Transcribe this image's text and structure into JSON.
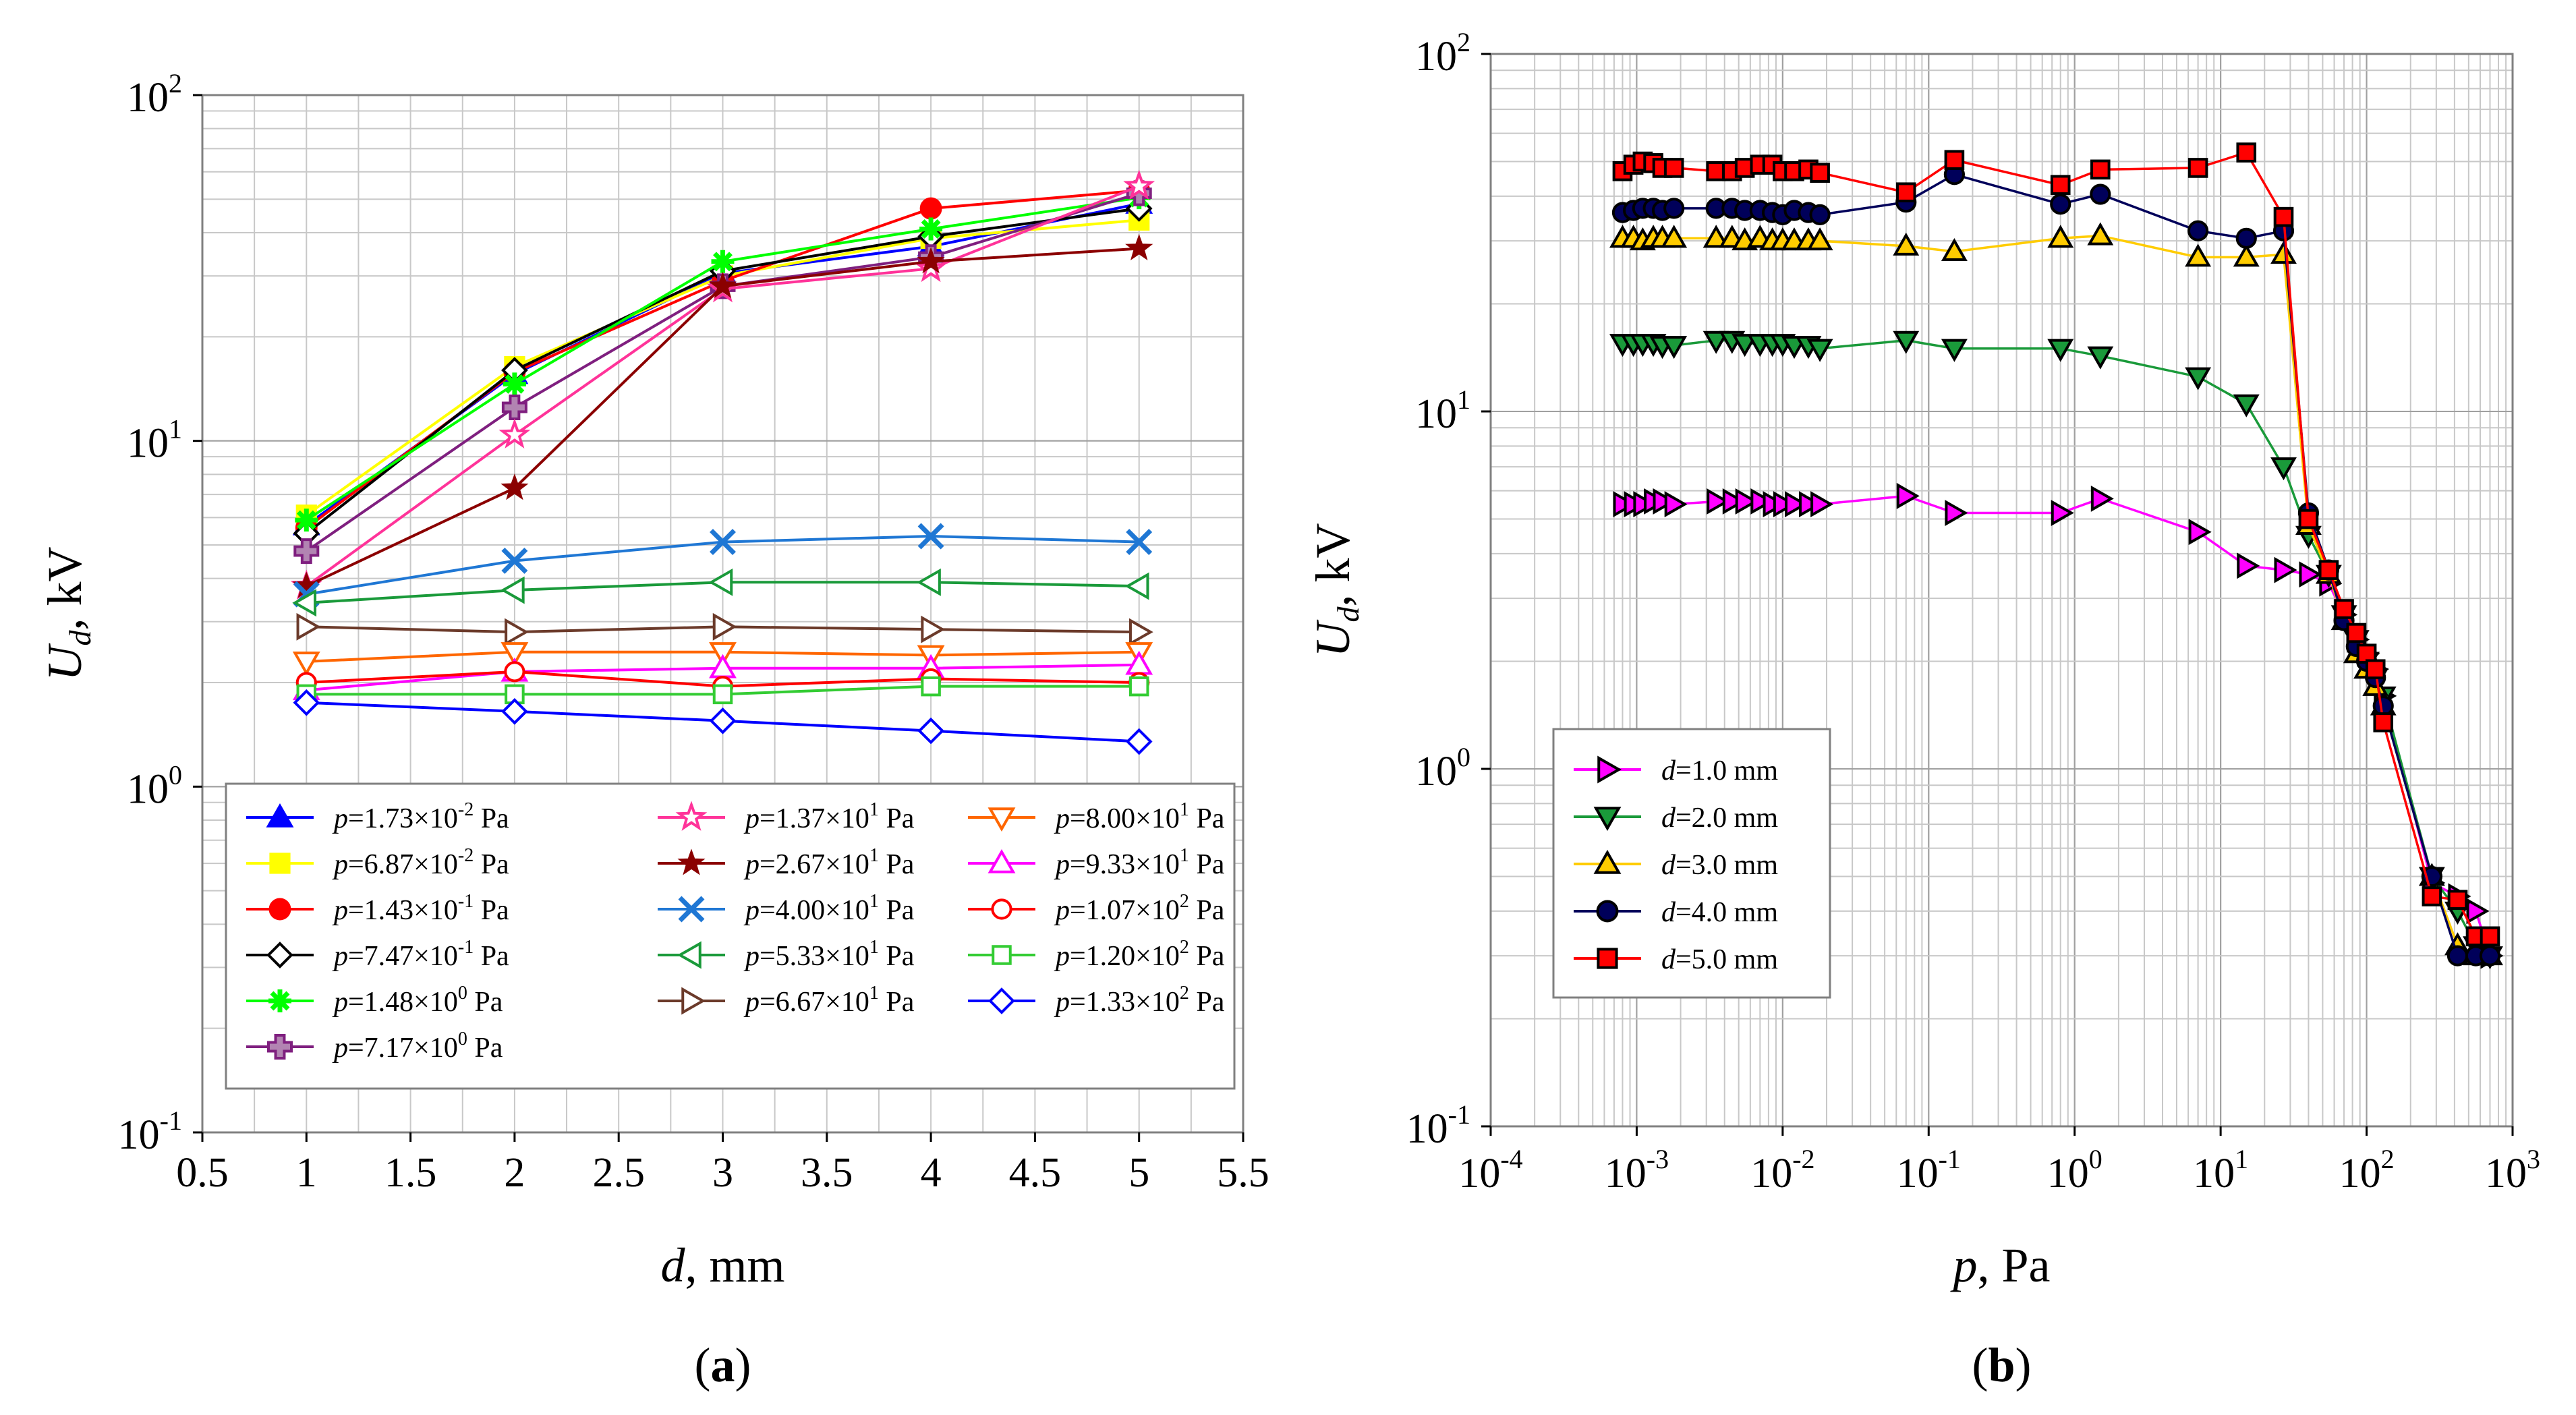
{
  "figure": {
    "panel_labels": [
      "a",
      "b"
    ]
  },
  "chart_data": [
    {
      "type": "line",
      "panel": "a",
      "xlabel": "d, mm",
      "xlabel_var": "d",
      "xlabel_unit": ", mm",
      "ylabel": "Ud, kV",
      "ylabel_var": "U",
      "ylabel_sub": "d",
      "ylabel_unit": ", kV",
      "xscale": "linear",
      "yscale": "log",
      "xlim": [
        0.5,
        5.5
      ],
      "ylim": [
        0.1,
        100
      ],
      "xticks": [
        "0.5",
        "1",
        "1.5",
        "2",
        "2.5",
        "3",
        "3.5",
        "4",
        "4.5",
        "5",
        "5.5"
      ],
      "yticks": [
        {
          "base": "10",
          "exp": "-1"
        },
        {
          "base": "10",
          "exp": "0"
        },
        {
          "base": "10",
          "exp": "1"
        },
        {
          "base": "10",
          "exp": "2"
        }
      ],
      "grid": true,
      "legend_position": "bottom",
      "x": [
        1,
        2,
        3,
        4,
        5
      ],
      "series": [
        {
          "name": "p=1.73×10-2 Pa",
          "label": {
            "mant": "=1.73×10",
            "exp": "-2",
            "unit": " Pa"
          },
          "color": "#0000ff",
          "marker": "triangle-filled",
          "values": [
            5.7,
            15.6,
            30.5,
            36.5,
            48.5
          ]
        },
        {
          "name": "p=6.87×10-2 Pa",
          "label": {
            "mant": "=6.87×10",
            "exp": "-2",
            "unit": " Pa"
          },
          "color": "#ffff00",
          "marker": "square-filled",
          "values": [
            6.1,
            16.4,
            30.0,
            38.5,
            43.5
          ]
        },
        {
          "name": "p=1.43×10-1 Pa",
          "label": {
            "mant": "=1.43×10",
            "exp": "-1",
            "unit": " Pa"
          },
          "color": "#ff0000",
          "marker": "circle-filled",
          "values": [
            5.6,
            15.8,
            29.0,
            47.0,
            53.0
          ]
        },
        {
          "name": "p=7.47×10-1 Pa",
          "label": {
            "mant": "=7.47×10",
            "exp": "-1",
            "unit": " Pa"
          },
          "color": "#000000",
          "marker": "diamond-open",
          "values": [
            5.4,
            16.0,
            31.0,
            39.0,
            47.0
          ]
        },
        {
          "name": "p=1.48×100 Pa",
          "label": {
            "mant": "=1.48×10",
            "exp": "0",
            "unit": " Pa"
          },
          "color": "#00ff00",
          "marker": "asterisk",
          "values": [
            5.9,
            14.6,
            33.0,
            41.0,
            50.5
          ]
        },
        {
          "name": "p=7.17×100 Pa",
          "label": {
            "mant": "=7.17×10",
            "exp": "0",
            "unit": " Pa"
          },
          "color": "#7f1f7f",
          "marker": "cross-filled",
          "values": [
            4.8,
            12.5,
            28.0,
            34.0,
            52.0
          ]
        },
        {
          "name": "p=1.37×101 Pa",
          "label": {
            "mant": "=1.37×10",
            "exp": "1",
            "unit": " Pa"
          },
          "color": "#ff3399",
          "marker": "star-open",
          "values": [
            3.8,
            10.4,
            27.5,
            31.5,
            54.5
          ]
        },
        {
          "name": "p=2.67×101 Pa",
          "label": {
            "mant": "=2.67×10",
            "exp": "1",
            "unit": " Pa"
          },
          "color": "#8b0000",
          "marker": "star-filled",
          "values": [
            3.8,
            7.3,
            28.0,
            33.0,
            36.0
          ]
        },
        {
          "name": "p=4.00×101 Pa",
          "label": {
            "mant": "=4.00×10",
            "exp": "1",
            "unit": " Pa"
          },
          "color": "#1f77d4",
          "marker": "x",
          "values": [
            3.6,
            4.5,
            5.1,
            5.3,
            5.1
          ]
        },
        {
          "name": "p=5.33×101 Pa",
          "label": {
            "mant": "=5.33×10",
            "exp": "1",
            "unit": " Pa"
          },
          "color": "#1a9a3a",
          "marker": "triangle-left-open",
          "values": [
            3.4,
            3.7,
            3.9,
            3.9,
            3.8
          ]
        },
        {
          "name": "p=6.67×101 Pa",
          "label": {
            "mant": "=6.67×10",
            "exp": "1",
            "unit": " Pa"
          },
          "color": "#6b3a2a",
          "marker": "triangle-right-open",
          "values": [
            2.9,
            2.8,
            2.9,
            2.85,
            2.8
          ]
        },
        {
          "name": "p=8.00×101 Pa",
          "label": {
            "mant": "=8.00×10",
            "exp": "1",
            "unit": " Pa"
          },
          "color": "#ff6600",
          "marker": "triangle-down-open",
          "values": [
            2.3,
            2.45,
            2.45,
            2.4,
            2.45
          ]
        },
        {
          "name": "p=9.33×101 Pa",
          "label": {
            "mant": "=9.33×10",
            "exp": "1",
            "unit": " Pa"
          },
          "color": "#ff00ff",
          "marker": "triangle-open",
          "values": [
            1.9,
            2.15,
            2.2,
            2.2,
            2.25
          ]
        },
        {
          "name": "p=1.07×102 Pa",
          "label": {
            "mant": "=1.07×10",
            "exp": "2",
            "unit": " Pa"
          },
          "color": "#ff0000",
          "marker": "circle-open",
          "values": [
            2.0,
            2.15,
            1.95,
            2.05,
            2.0
          ]
        },
        {
          "name": "p=1.20×102 Pa",
          "label": {
            "mant": "=1.20×10",
            "exp": "2",
            "unit": " Pa"
          },
          "color": "#33cc33",
          "marker": "square-open",
          "values": [
            1.85,
            1.85,
            1.85,
            1.95,
            1.95
          ]
        },
        {
          "name": "p=1.33×102 Pa",
          "label": {
            "mant": "=1.33×10",
            "exp": "2",
            "unit": " Pa"
          },
          "color": "#0000ff",
          "marker": "diamond-open",
          "values": [
            1.75,
            1.65,
            1.55,
            1.45,
            1.35
          ]
        }
      ]
    },
    {
      "type": "line",
      "panel": "b",
      "xlabel": "p, Pa",
      "xlabel_var": "p",
      "xlabel_unit": ", Pa",
      "ylabel": "Ud, kV",
      "ylabel_var": "U",
      "ylabel_sub": "d",
      "ylabel_unit": ", kV",
      "xscale": "log",
      "yscale": "log",
      "xlim": [
        0.0001,
        1000
      ],
      "ylim": [
        0.1,
        100
      ],
      "xticks": [
        {
          "base": "10",
          "exp": "-4"
        },
        {
          "base": "10",
          "exp": "-3"
        },
        {
          "base": "10",
          "exp": "-2"
        },
        {
          "base": "10",
          "exp": "-1"
        },
        {
          "base": "10",
          "exp": "0"
        },
        {
          "base": "10",
          "exp": "1"
        },
        {
          "base": "10",
          "exp": "2"
        },
        {
          "base": "10",
          "exp": "3"
        }
      ],
      "yticks": [
        {
          "base": "10",
          "exp": "-1"
        },
        {
          "base": "10",
          "exp": "0"
        },
        {
          "base": "10",
          "exp": "1"
        },
        {
          "base": "10",
          "exp": "2"
        }
      ],
      "grid": true,
      "legend_position": "bottom-left",
      "series": [
        {
          "name": "d=1.0 mm",
          "label_var": "d",
          "label_rest": "=1.0 mm",
          "color": "#ff00ff",
          "marker": "triangle-right-filled",
          "x": [
            0.0008,
            0.00095,
            0.0011,
            0.0013,
            0.0015,
            0.0018,
            0.0035,
            0.0045,
            0.0055,
            0.007,
            0.0085,
            0.01,
            0.012,
            0.015,
            0.018,
            0.07,
            0.15,
            0.8,
            1.5,
            7,
            15,
            27,
            40,
            55,
            70,
            85,
            100,
            115,
            130,
            280,
            420,
            560,
            700
          ],
          "y": [
            5.5,
            5.5,
            5.5,
            5.6,
            5.6,
            5.5,
            5.6,
            5.6,
            5.6,
            5.6,
            5.5,
            5.5,
            5.5,
            5.5,
            5.5,
            5.8,
            5.2,
            5.2,
            5.7,
            4.6,
            3.7,
            3.6,
            3.5,
            3.3,
            2.7,
            2.3,
            2.1,
            1.9,
            1.6,
            0.48,
            0.44,
            0.4,
            0.3
          ]
        },
        {
          "name": "d=2.0 mm",
          "label_var": "d",
          "label_rest": "=2.0 mm",
          "color": "#1a9a3a",
          "marker": "triangle-down-filled",
          "x": [
            0.0008,
            0.00095,
            0.0011,
            0.0013,
            0.0015,
            0.0018,
            0.0035,
            0.0045,
            0.0055,
            0.007,
            0.0085,
            0.01,
            0.012,
            0.015,
            0.018,
            0.07,
            0.15,
            0.8,
            1.5,
            7,
            15,
            27,
            40,
            55,
            70,
            85,
            100,
            115,
            130,
            280,
            420,
            560,
            700
          ],
          "y": [
            15.5,
            15.5,
            15.5,
            15.5,
            15.3,
            15.3,
            15.8,
            15.8,
            15.5,
            15.5,
            15.5,
            15.5,
            15.3,
            15.3,
            15.0,
            15.8,
            15.0,
            15.0,
            14.3,
            12.5,
            10.5,
            7.0,
            4.5,
            3.5,
            2.7,
            2.3,
            2.0,
            1.8,
            1.6,
            0.5,
            0.4,
            0.32,
            0.3
          ]
        },
        {
          "name": "d=3.0 mm",
          "label_var": "d",
          "label_rest": "=3.0 mm",
          "color": "#ffcc00",
          "marker": "triangle-filled",
          "x": [
            0.0008,
            0.00095,
            0.0011,
            0.0013,
            0.0015,
            0.0018,
            0.0035,
            0.0045,
            0.0055,
            0.007,
            0.0085,
            0.01,
            0.012,
            0.015,
            0.018,
            0.07,
            0.15,
            0.8,
            1.5,
            7,
            15,
            27,
            40,
            55,
            70,
            85,
            100,
            115,
            130,
            280,
            420,
            560,
            700
          ],
          "y": [
            30.5,
            30.5,
            30.0,
            30.5,
            30.5,
            30.5,
            30.5,
            30.5,
            30.0,
            30.5,
            30.0,
            30.0,
            30.0,
            30.0,
            30.0,
            29.0,
            28.0,
            30.5,
            31.0,
            27.0,
            27.0,
            27.5,
            4.8,
            3.5,
            2.6,
            2.1,
            1.9,
            1.7,
            1.5,
            0.5,
            0.32,
            0.3,
            0.3
          ]
        },
        {
          "name": "d=4.0 mm",
          "label_var": "d",
          "label_rest": "=4.0 mm",
          "color": "#00005a",
          "marker": "circle-filled",
          "x": [
            0.0008,
            0.00095,
            0.0011,
            0.0013,
            0.0015,
            0.0018,
            0.0035,
            0.0045,
            0.0055,
            0.007,
            0.0085,
            0.01,
            0.012,
            0.015,
            0.018,
            0.07,
            0.15,
            0.8,
            1.5,
            7,
            15,
            27,
            40,
            55,
            70,
            85,
            100,
            115,
            130,
            280,
            420,
            560,
            700
          ],
          "y": [
            36.0,
            36.5,
            37.0,
            37.0,
            36.5,
            37.0,
            37.0,
            37.0,
            36.5,
            36.5,
            36.0,
            35.5,
            36.5,
            36.0,
            35.5,
            38.5,
            46.0,
            38.0,
            40.5,
            32.0,
            30.5,
            32.0,
            5.2,
            3.6,
            2.6,
            2.2,
            2.0,
            1.8,
            1.5,
            0.5,
            0.3,
            0.3,
            0.3
          ]
        },
        {
          "name": "d=5.0 mm",
          "label_var": "d",
          "label_rest": "=5.0 mm",
          "color": "#ff0000",
          "marker": "square-filled",
          "x": [
            0.0008,
            0.00095,
            0.0011,
            0.0013,
            0.0015,
            0.0018,
            0.0035,
            0.0045,
            0.0055,
            0.007,
            0.0085,
            0.01,
            0.012,
            0.015,
            0.018,
            0.07,
            0.15,
            0.8,
            1.5,
            7,
            15,
            27,
            40,
            55,
            70,
            85,
            100,
            115,
            130,
            280,
            420,
            560,
            700
          ],
          "y": [
            47.0,
            49.0,
            50.0,
            49.5,
            48.0,
            48.0,
            47.0,
            47.0,
            48.0,
            49.0,
            49.0,
            47.0,
            47.0,
            47.5,
            46.5,
            41.0,
            50.5,
            43.0,
            47.5,
            48.0,
            53.0,
            35.0,
            5.0,
            3.6,
            2.8,
            2.4,
            2.1,
            1.9,
            1.35,
            0.44,
            0.43,
            0.34,
            0.34
          ]
        }
      ]
    }
  ]
}
